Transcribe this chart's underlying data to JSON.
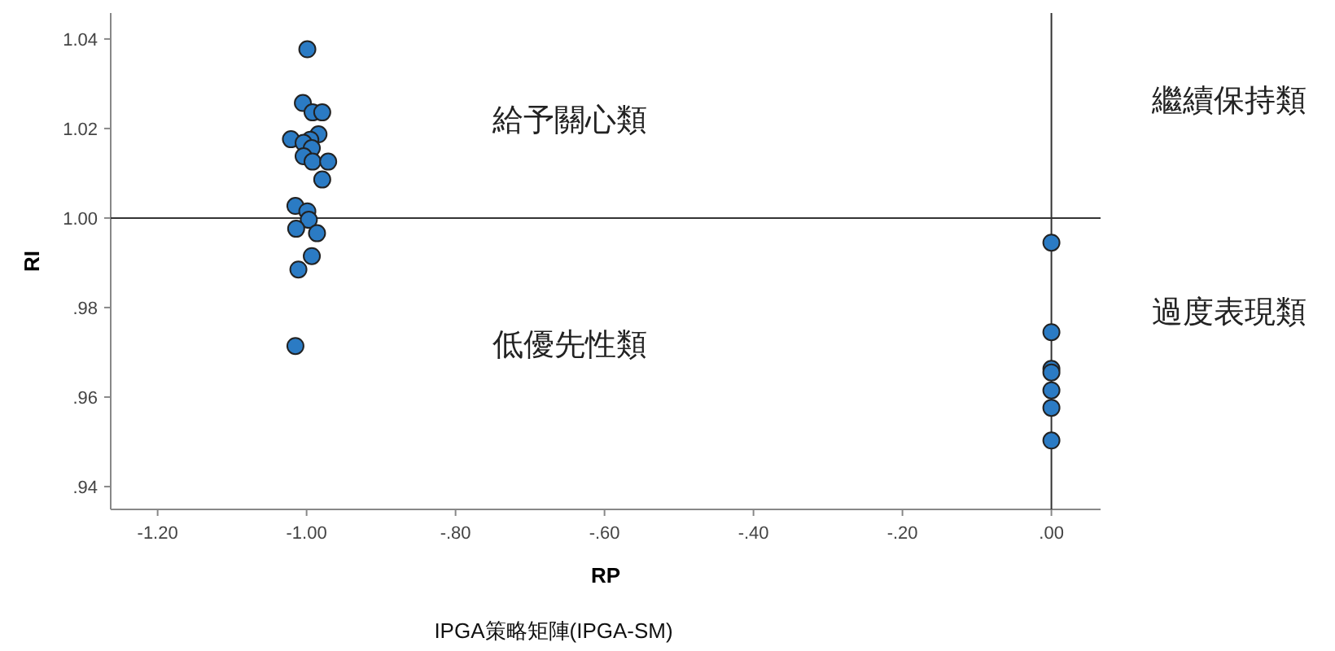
{
  "chart_data": {
    "type": "scatter",
    "title": "IPGA策略矩陣(IPGA-SM)",
    "xlabel": "RP",
    "ylabel": "RI",
    "x": [
      -0.999,
      -1.005,
      -0.992,
      -0.979,
      -1.021,
      -0.984,
      -0.995,
      -1.004,
      -0.993,
      -1.004,
      -0.992,
      -0.971,
      -0.979,
      -1.015,
      -0.999,
      -0.997,
      -1.014,
      -0.986,
      -0.993,
      -1.011,
      -1.015,
      0,
      0,
      0,
      0,
      0,
      0,
      0
    ],
    "values": [
      1.0377,
      1.0257,
      1.0236,
      1.0236,
      1.0176,
      1.0187,
      1.0175,
      1.0168,
      1.0156,
      1.0138,
      1.0126,
      1.0126,
      1.0086,
      1.0027,
      1.0015,
      0.9996,
      0.9976,
      0.9966,
      0.9915,
      0.9885,
      0.9714,
      0.9945,
      0.9745,
      0.9663,
      0.9655,
      0.9615,
      0.9576,
      0.9503
    ],
    "color": "#2b7bc4",
    "marker": "circle",
    "xlim": [
      -1.263,
      0.066
    ],
    "ylim": [
      0.9349,
      1.0458
    ],
    "xticks": [
      {
        "value": -1.2,
        "label": "-1.20"
      },
      {
        "value": -1.0,
        "label": "-1.00"
      },
      {
        "value": -0.8,
        "label": "-.80"
      },
      {
        "value": -0.6,
        "label": "-.60"
      },
      {
        "value": -0.4,
        "label": "-.40"
      },
      {
        "value": -0.2,
        "label": "-.20"
      },
      {
        "value": 0,
        "label": ".00"
      }
    ],
    "yticks": [
      {
        "value": 0.94,
        "label": ".94"
      },
      {
        "value": 0.96,
        "label": ".96"
      },
      {
        "value": 0.98,
        "label": ".98"
      },
      {
        "value": 1.0,
        "label": "1.00"
      },
      {
        "value": 1.02,
        "label": "1.02"
      },
      {
        "value": 1.04,
        "label": "1.04"
      }
    ],
    "ref_lines": [
      {
        "axis": "y",
        "value": 1.0,
        "color": "#333333"
      },
      {
        "axis": "x",
        "value": 0,
        "color": "#333333"
      }
    ],
    "annotations": [
      "給予關心類",
      "繼續保持類",
      "低優先性類",
      "過度表現類"
    ],
    "grid": false
  }
}
